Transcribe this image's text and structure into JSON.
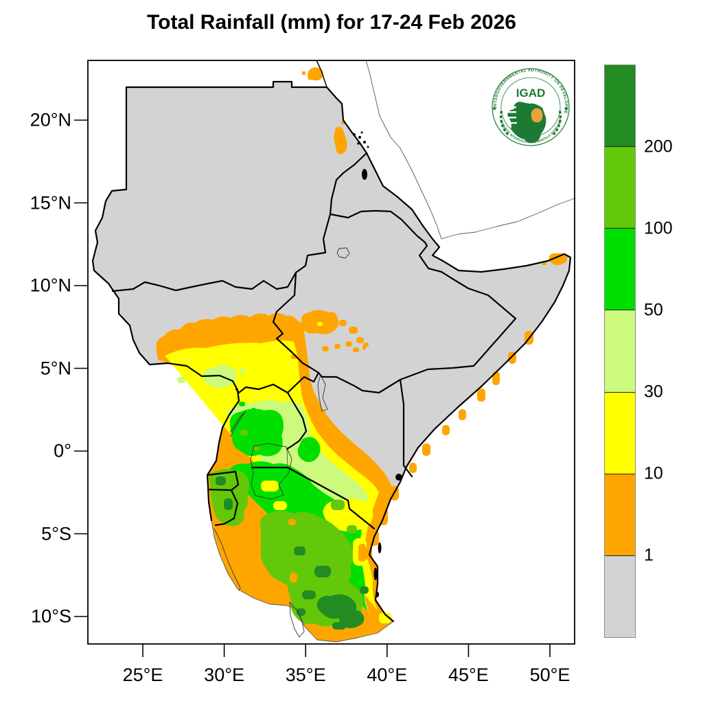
{
  "title": "Total Rainfall (mm) for 17-24 Feb 2026",
  "map": {
    "x_axis": {
      "ticks": [
        "25°E",
        "30°E",
        "35°E",
        "40°E",
        "45°E",
        "50°E"
      ]
    },
    "y_axis": {
      "ticks": [
        "20°N",
        "15°N",
        "10°N",
        "5°N",
        "0°",
        "5°S",
        "10°S"
      ]
    }
  },
  "colorbar": {
    "labels": [
      "200",
      "100",
      "50",
      "30",
      "10",
      "1"
    ],
    "segments_top_to_bottom": [
      "#228B22",
      "#64C80A",
      "#00DF00",
      "#CCFA7D",
      "#FFFF00",
      "#FFA500",
      "#D3D3D3"
    ]
  },
  "palette": {
    "gray": "#D3D3D3",
    "orange": "#FFA500",
    "yellow": "#FFFF00",
    "light_green": "#CCFA7D",
    "green": "#00DF00",
    "medium_green": "#64C80A",
    "dark_green": "#228B22"
  },
  "logo": {
    "top_text": "INTERGOVERNMENTAL AUTHORITY ON DEVELOPMENT",
    "name": "IGAD",
    "bottom_text": "AUTORITE INTERGOUVERNEMENTALE POUR LE DEVELOPPEMENT",
    "star": "★",
    "green": "#1d7a34",
    "gold": "#E8A33D"
  },
  "chart_data": {
    "type": "heatmap",
    "title": "Total Rainfall (mm) for 17-24 Feb 2026",
    "x_ticks": [
      "25°E",
      "30°E",
      "35°E",
      "40°E",
      "45°E",
      "50°E"
    ],
    "y_ticks": [
      "20°N",
      "15°N",
      "10°N",
      "5°N",
      "0°",
      "5°S",
      "10°S"
    ],
    "legend_bounds_mm": [
      1,
      10,
      30,
      50,
      100,
      200
    ],
    "legend_colors_low_to_high": [
      "#D3D3D3",
      "#FFA500",
      "#FFFF00",
      "#CCFA7D",
      "#00DF00",
      "#64C80A",
      "#228B22"
    ]
  }
}
